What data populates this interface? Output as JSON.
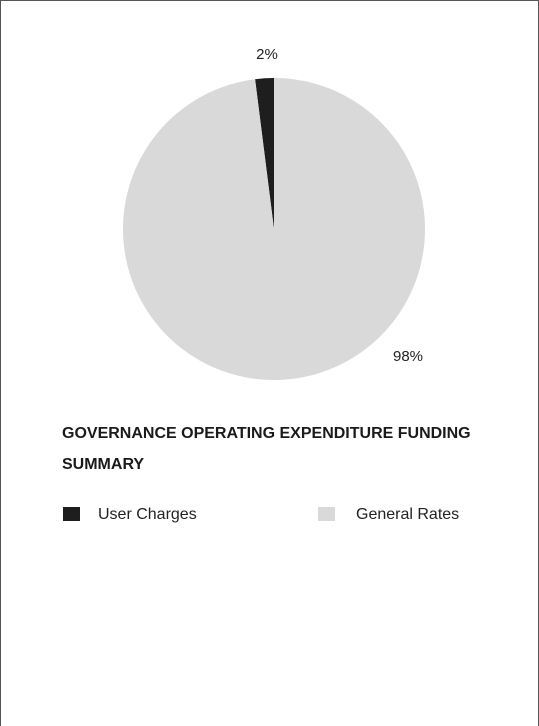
{
  "chart_data": {
    "type": "pie",
    "title": "GOVERNANCE OPERATING EXPENDITURE FUNDING SUMMARY",
    "series": [
      {
        "name": "User Charges",
        "color": "#1e1e1e",
        "values": [
          2
        ],
        "value_labels": [
          "2%"
        ]
      },
      {
        "name": "General Rates",
        "color": "#d9d9d9",
        "values": [
          98
        ],
        "value_labels": [
          "98%"
        ]
      }
    ],
    "legend": "bottom"
  }
}
